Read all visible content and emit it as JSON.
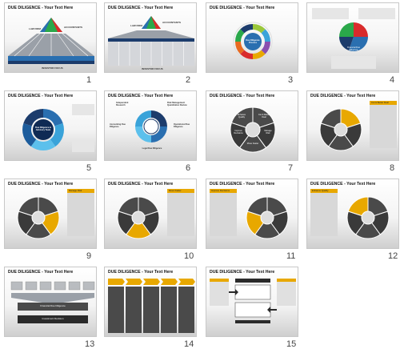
{
  "slides": [
    {
      "number": "1",
      "title": "DUE DILIGENCE - Your Text Here",
      "labels": [
        "LAW FIRM",
        "ACCOUNTANTS",
        "INVESTOR FOCUS"
      ]
    },
    {
      "number": "2",
      "title": "DUE DILIGENCE - Your Text Here",
      "labels": [
        "LAW FIRM",
        "ACCOUNTANTS",
        "INVESTOR FOCUS"
      ]
    },
    {
      "number": "3",
      "title": "DUE DILIGENCE - Your Text Here",
      "labels": [
        "Due Diligence Process"
      ]
    },
    {
      "number": "4",
      "title": "DUE DILIGENCE - Your Text Here",
      "labels": [
        "Financial Due Diligence"
      ]
    },
    {
      "number": "5",
      "title": "DUE DILIGENCE - Your Text Here",
      "labels": [
        "Due Diligence & Advisory Team"
      ]
    },
    {
      "number": "6",
      "title": "DUE DILIGENCE - Your Text Here",
      "labels": [
        "Independent Research",
        "Risk Management Quantitative Review",
        "Accounting Due Diligence",
        "Operational Due Diligence",
        "Legal Due Diligence"
      ]
    },
    {
      "number": "7",
      "title": "DUE DILIGENCE - Your Text Here",
      "labels": [
        "Enhance Quality",
        "Cut & Better Deal",
        "Manage Risk",
        "Move Faster",
        "Improve Decisions"
      ]
    },
    {
      "number": "8",
      "title": "DUE DILIGENCE - Your Text Here",
      "labels": [
        "Enhance Quality",
        "Cut & Better Deal",
        "Manage Risk",
        "Move Faster",
        "Improve Decisions",
        "Cut & Better Deal"
      ]
    },
    {
      "number": "9",
      "title": "DUE DILIGENCE - Your Text Here",
      "labels": [
        "Enhance Quality",
        "Cut & Better Deal",
        "Manage Risk",
        "Move Faster",
        "Improve Decisions",
        "Manage Risk"
      ]
    },
    {
      "number": "10",
      "title": "DUE DILIGENCE - Your Text Here",
      "labels": [
        "Enhance Quality",
        "Cut & Better Deal",
        "Manage Risk",
        "Move Faster",
        "Improve Decisions",
        "Move Faster"
      ]
    },
    {
      "number": "11",
      "title": "DUE DILIGENCE - Your Text Here",
      "labels": [
        "Improve Decisions",
        "Enhance Quality",
        "Cut & Better Deal",
        "Manage Risk",
        "Move Faster"
      ]
    },
    {
      "number": "12",
      "title": "DUE DILIGENCE - Your Text Here",
      "labels": [
        "Enhance Quality",
        "Enhance Quality",
        "Cut & Better Deal",
        "Manage Risk",
        "Move Faster",
        "Improve Decisions"
      ]
    },
    {
      "number": "13",
      "title": "DUE DILIGENCE - Your Text Here",
      "labels": [
        "Financial Due Diligence",
        "Investment Decision"
      ]
    },
    {
      "number": "14",
      "title": "DUE DILIGENCE - Your Text Here",
      "labels": []
    },
    {
      "number": "15",
      "title": "DUE DILIGENCE - Your Text Here",
      "labels": []
    }
  ],
  "colors": {
    "yellow": "#e8a800",
    "blue": "#2a6fb0",
    "dark": "#3a3a3a",
    "navy": "#1c3c6c",
    "red": "#d92b2b",
    "green": "#2aa84a"
  }
}
